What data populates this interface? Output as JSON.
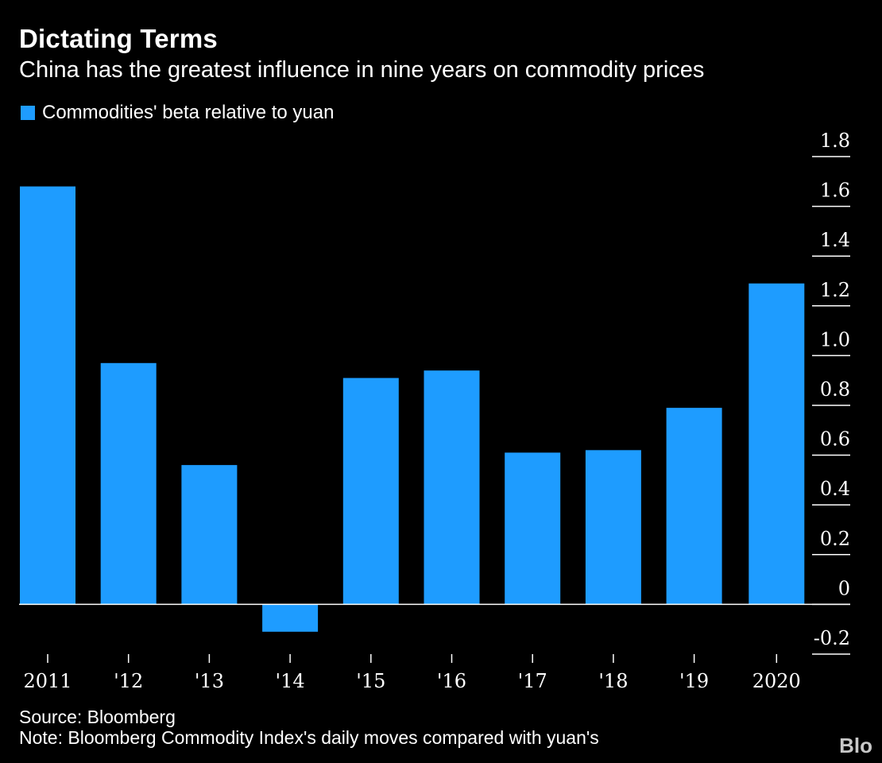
{
  "title": "Dictating Terms",
  "subtitle": "China has the greatest influence in nine years on commodity prices",
  "legend": {
    "label": "Commodities' beta relative to yuan",
    "color": "#1e9cff"
  },
  "source": "Source: Bloomberg",
  "note": "Note: Bloomberg Commodity Index's daily moves compared with yuan's",
  "watermark": "Blo",
  "colors": {
    "background": "#000000",
    "bar": "#1e9cff",
    "text": "#ffffff",
    "axis": "#ffffff"
  },
  "chart_data": {
    "type": "bar",
    "title": "Dictating Terms",
    "subtitle": "China has the greatest influence in nine years on commodity prices",
    "xlabel": "",
    "ylabel": "",
    "categories": [
      "2011",
      "'12",
      "'13",
      "'14",
      "'15",
      "'16",
      "'17",
      "'18",
      "'19",
      "2020"
    ],
    "series": [
      {
        "name": "Commodities' beta relative to yuan",
        "values": [
          1.68,
          0.97,
          0.56,
          -0.11,
          0.91,
          0.94,
          0.61,
          0.62,
          0.79,
          1.29
        ]
      }
    ],
    "ylim": [
      -0.2,
      1.8
    ],
    "yticks": [
      1.8,
      1.6,
      1.4,
      1.2,
      1.0,
      0.8,
      0.6,
      0.4,
      0.2,
      0,
      -0.2
    ],
    "ytick_labels": [
      "1.8",
      "1.6",
      "1.4",
      "1.2",
      "1.0",
      "0.8",
      "0.6",
      "0.4",
      "0.2",
      "0",
      "-0.2"
    ],
    "y_axis_position": "right",
    "grid": false,
    "legend_position": "top-left"
  }
}
